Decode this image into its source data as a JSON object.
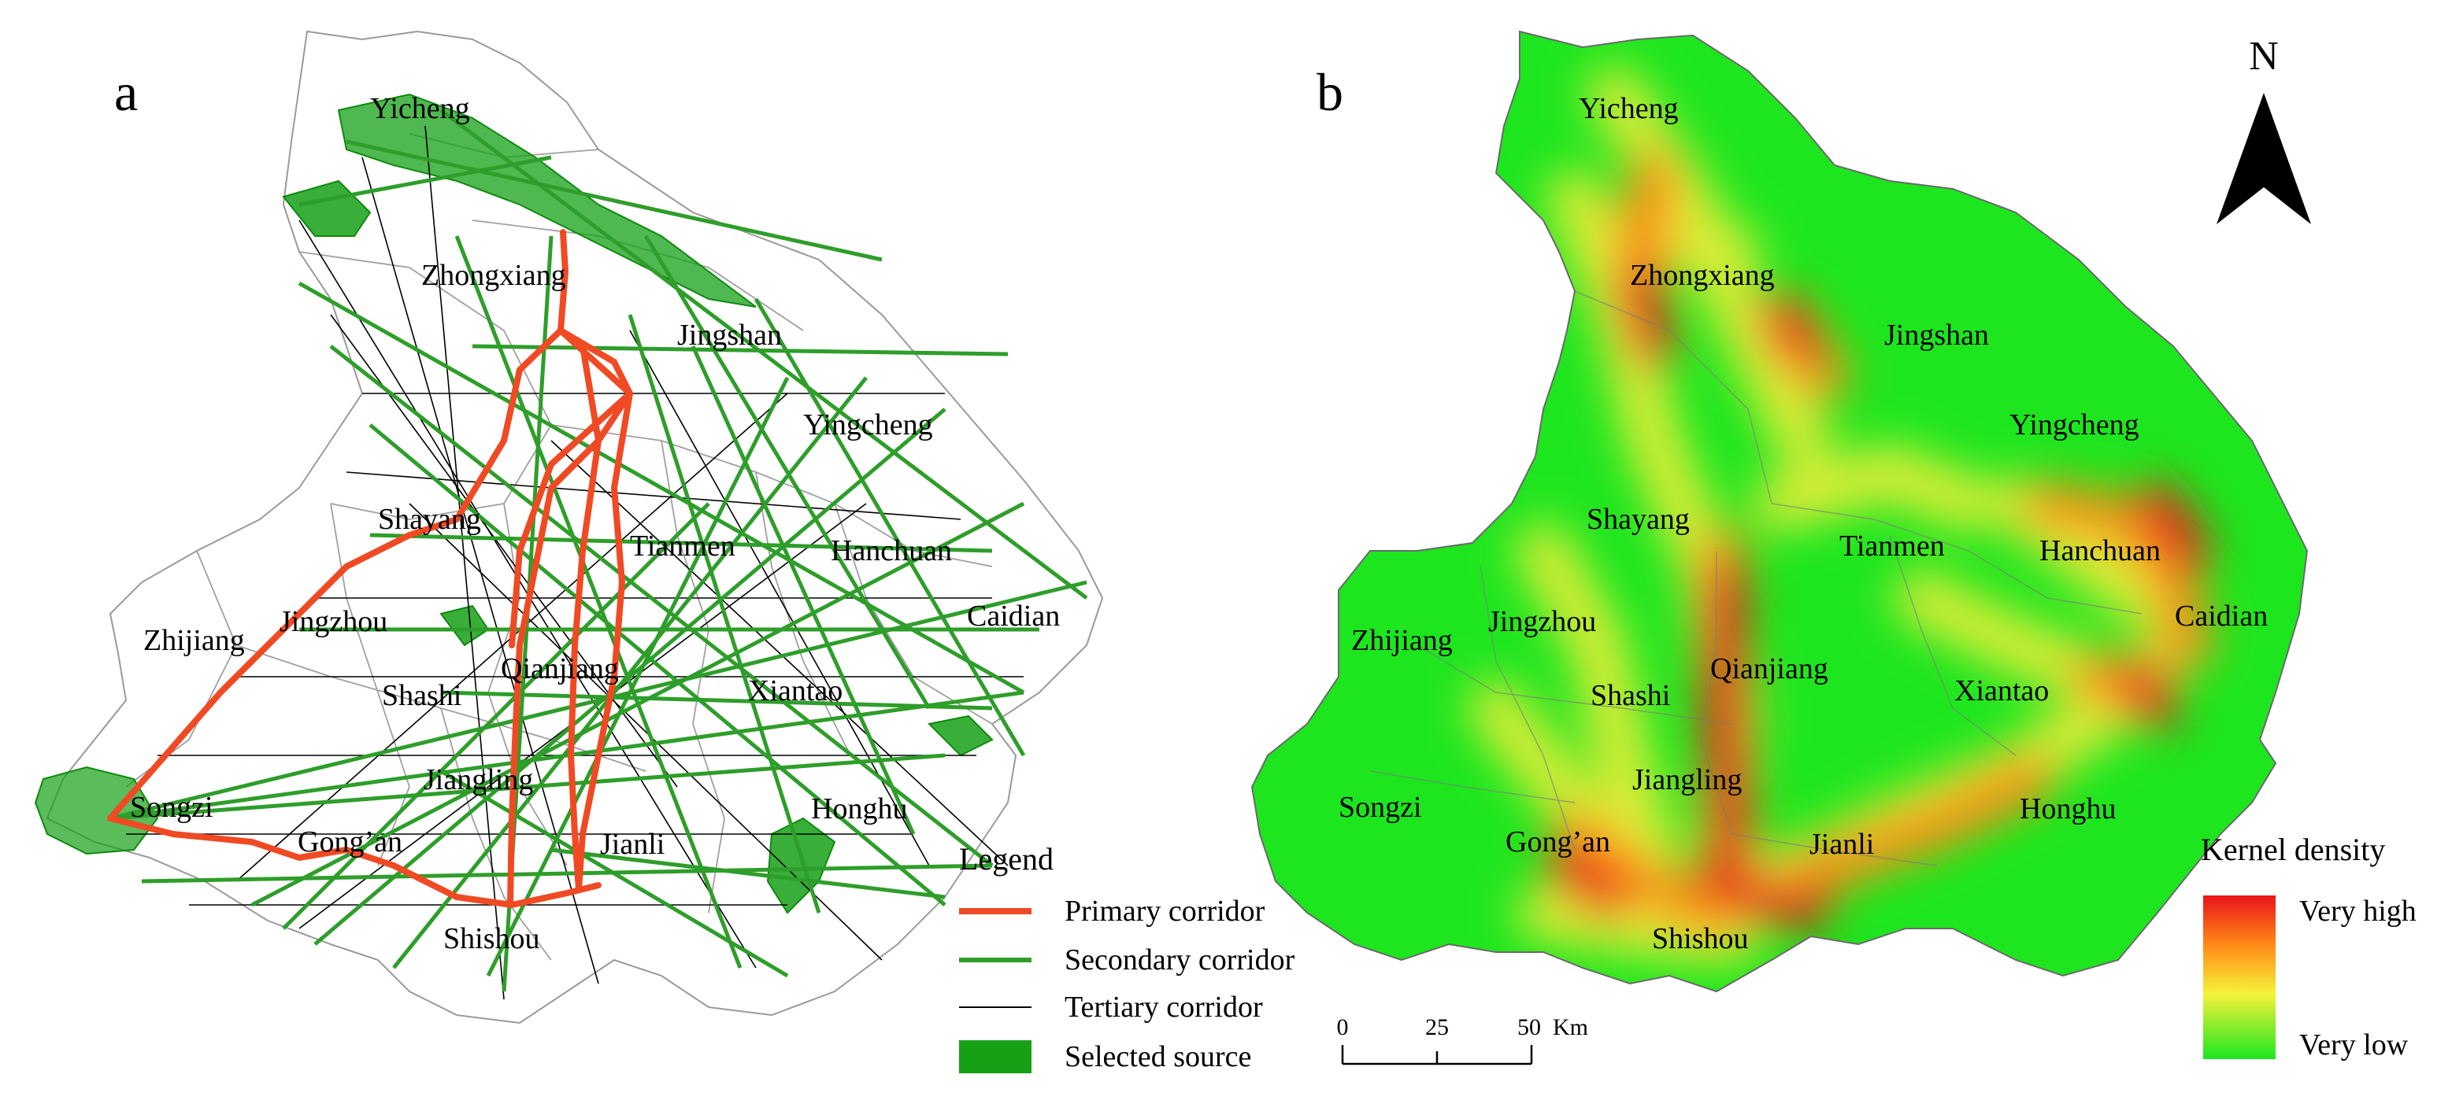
{
  "panels": {
    "a": {
      "letter": "a"
    },
    "b": {
      "letter": "b"
    }
  },
  "cities": [
    {
      "id": "yicheng",
      "name": "Yicheng"
    },
    {
      "id": "zhongxiang",
      "name": "Zhongxiang"
    },
    {
      "id": "jingshan",
      "name": "Jingshan"
    },
    {
      "id": "yingcheng",
      "name": "Yingcheng"
    },
    {
      "id": "shayang",
      "name": "Shayang"
    },
    {
      "id": "tianmen",
      "name": "Tianmen"
    },
    {
      "id": "hanchuan",
      "name": "Hanchuan"
    },
    {
      "id": "caidian",
      "name": "Caidian"
    },
    {
      "id": "zhijiang",
      "name": "Zhijiang"
    },
    {
      "id": "jingzhou",
      "name": "Jingzhou"
    },
    {
      "id": "qianjiang",
      "name": "Qianjiang"
    },
    {
      "id": "shashi",
      "name": "Shashi"
    },
    {
      "id": "xiantao",
      "name": "Xiantao"
    },
    {
      "id": "jiangling",
      "name": "Jiangling"
    },
    {
      "id": "songzi",
      "name": "Songzi"
    },
    {
      "id": "gongan",
      "name": "Gong’an"
    },
    {
      "id": "jianli",
      "name": "Jianli"
    },
    {
      "id": "honghu",
      "name": "Honghu"
    },
    {
      "id": "shishou",
      "name": "Shishou"
    }
  ],
  "legend": {
    "title": "Legend",
    "items": [
      {
        "label": "Primary corridor",
        "color": "#f04a25"
      },
      {
        "label": "Secondary corridor",
        "color": "#2e9e2a"
      },
      {
        "label": "Tertiary corridor",
        "color": "#000000"
      },
      {
        "label": "Selected source",
        "color": "#16a016"
      }
    ]
  },
  "kernel_legend": {
    "title": "Kernel density",
    "high": "Very high",
    "low": "Very low",
    "colors": [
      "#e8131b",
      "#ff8a17",
      "#f6f23a",
      "#1de61f"
    ]
  },
  "scale_bar": {
    "ticks": [
      "0",
      "25",
      "50"
    ],
    "unit": "Km"
  },
  "north_arrow": {
    "label": "N"
  }
}
